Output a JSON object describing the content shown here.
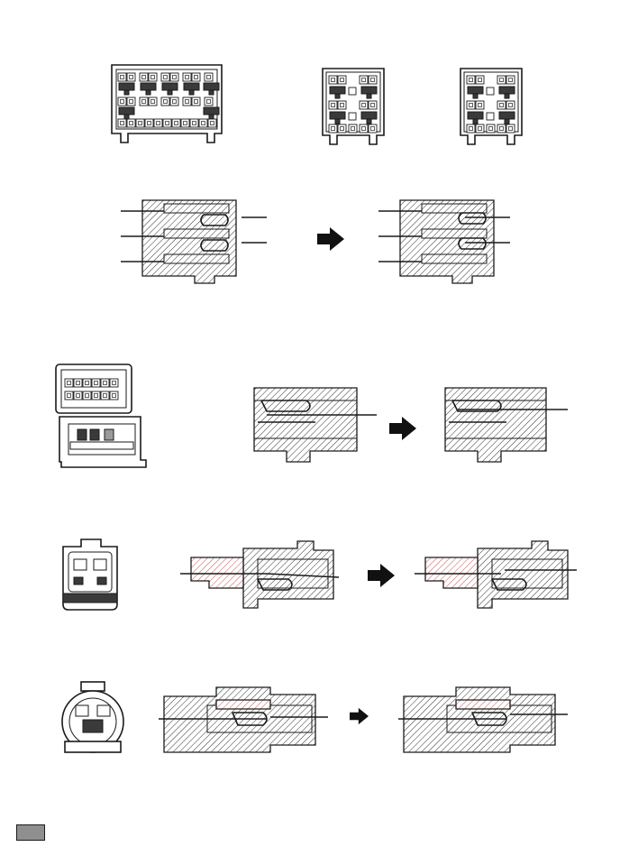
{
  "figure": {
    "background": "#ffffff",
    "line_color": "#1a1a1a",
    "fill_dark": "#3a3a3a",
    "fill_mid": "#9a9a9a",
    "hatch_accent": "#c04040",
    "legend_swatch_color": "#8f8f8f"
  },
  "rows": [
    {
      "name": "row-1",
      "items": [
        "connector-front-view-wide",
        "connector-front-view-small-a",
        "connector-front-view-small-b"
      ]
    },
    {
      "name": "row-2",
      "items": [
        "terminal-section-before",
        "direction-arrow",
        "terminal-section-after"
      ]
    },
    {
      "name": "row-3",
      "items": [
        "connector-front-view-hinged",
        "terminal-lock-section-before",
        "direction-arrow",
        "terminal-lock-section-after"
      ]
    },
    {
      "name": "row-4",
      "items": [
        "connector-front-view-square",
        "waterproof-section-before",
        "direction-arrow",
        "waterproof-section-after"
      ]
    },
    {
      "name": "row-5",
      "items": [
        "connector-front-view-round",
        "sealed-section-before",
        "direction-arrow",
        "sealed-section-after"
      ]
    }
  ],
  "legend": {
    "icon": "shaded-area-swatch"
  }
}
